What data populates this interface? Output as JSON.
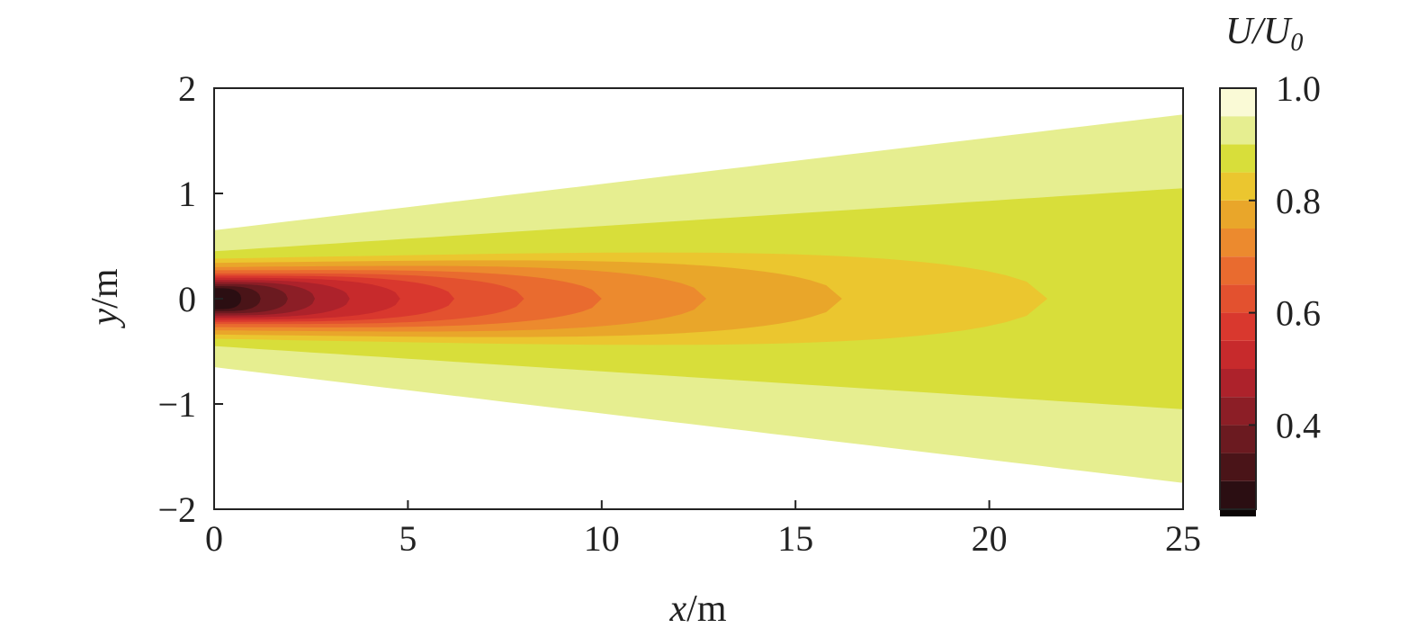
{
  "chart_data": {
    "type": "heatmap",
    "title": "",
    "xlabel": {
      "var": "x",
      "unit": "/m"
    },
    "ylabel": {
      "var": "y",
      "unit": "/m"
    },
    "xlim": [
      0,
      25
    ],
    "ylim": [
      -2,
      2
    ],
    "xticks": [
      0,
      5,
      10,
      15,
      20,
      25
    ],
    "xtick_labels": [
      "0",
      "5",
      "10",
      "15",
      "20",
      "25"
    ],
    "yticks": [
      2,
      1,
      0,
      -1,
      -2
    ],
    "ytick_labels": [
      "2",
      "1",
      "0",
      "−1",
      "−2"
    ],
    "colorbar": {
      "label": {
        "var": "U/U",
        "sub": "0"
      },
      "range": [
        0.25,
        1.0
      ],
      "ticks": [
        1.0,
        0.8,
        0.6,
        0.4
      ],
      "tick_labels": [
        "1.0",
        "0.8",
        "0.6",
        "0.4"
      ],
      "levels": [
        {
          "value": 0.25,
          "color": "#0c0606"
        },
        {
          "value": 0.3,
          "color": "#2b0e12"
        },
        {
          "value": 0.35,
          "color": "#4a1418"
        },
        {
          "value": 0.4,
          "color": "#6b1a20"
        },
        {
          "value": 0.45,
          "color": "#8c1e26"
        },
        {
          "value": 0.5,
          "color": "#ad222b"
        },
        {
          "value": 0.55,
          "color": "#c72a2c"
        },
        {
          "value": 0.6,
          "color": "#d9382e"
        },
        {
          "value": 0.65,
          "color": "#e3512f"
        },
        {
          "value": 0.7,
          "color": "#e96b2f"
        },
        {
          "value": 0.75,
          "color": "#ec8a2e"
        },
        {
          "value": 0.8,
          "color": "#e9a62a"
        },
        {
          "value": 0.85,
          "color": "#ebc62f"
        },
        {
          "value": 0.9,
          "color": "#d8de3a"
        },
        {
          "value": 0.95,
          "color": "#e6ee90"
        },
        {
          "value": 1.0,
          "color": "#fafad6"
        }
      ]
    },
    "field": {
      "description_levels": "wake velocity deficit contours",
      "wake_outer_halfwidth": {
        "x0": 0,
        "y0": 0.65,
        "x1": 25,
        "y1": 1.75
      },
      "contours": [
        {
          "level": 0.95,
          "halfwidth0": 0.65,
          "halfwidth1": 1.75,
          "end_x": 25
        },
        {
          "level": 0.9,
          "halfwidth0": 0.45,
          "halfwidth1": 1.05,
          "end_x": 25
        },
        {
          "level": 0.85,
          "halfwidth0": 0.38,
          "halfwidth1": 0.55,
          "end_x": 21.5
        },
        {
          "level": 0.8,
          "halfwidth0": 0.34,
          "halfwidth1": 0.45,
          "end_x": 16.2
        },
        {
          "level": 0.75,
          "halfwidth0": 0.3,
          "halfwidth1": 0.38,
          "end_x": 12.7
        },
        {
          "level": 0.7,
          "halfwidth0": 0.27,
          "halfwidth1": 0.3,
          "end_x": 10.0
        },
        {
          "level": 0.65,
          "halfwidth0": 0.24,
          "halfwidth1": 0.25,
          "end_x": 8.0
        },
        {
          "level": 0.6,
          "halfwidth0": 0.22,
          "halfwidth1": 0.2,
          "end_x": 6.2
        },
        {
          "level": 0.55,
          "halfwidth0": 0.2,
          "halfwidth1": 0.16,
          "end_x": 4.8
        },
        {
          "level": 0.5,
          "halfwidth0": 0.18,
          "halfwidth1": 0.12,
          "end_x": 3.5
        },
        {
          "level": 0.45,
          "halfwidth0": 0.16,
          "halfwidth1": 0.1,
          "end_x": 2.6
        },
        {
          "level": 0.4,
          "halfwidth0": 0.14,
          "halfwidth1": 0.08,
          "end_x": 1.9
        },
        {
          "level": 0.35,
          "halfwidth0": 0.12,
          "halfwidth1": 0.06,
          "end_x": 1.2
        },
        {
          "level": 0.3,
          "halfwidth0": 0.1,
          "halfwidth1": 0.05,
          "end_x": 0.7
        }
      ]
    }
  }
}
